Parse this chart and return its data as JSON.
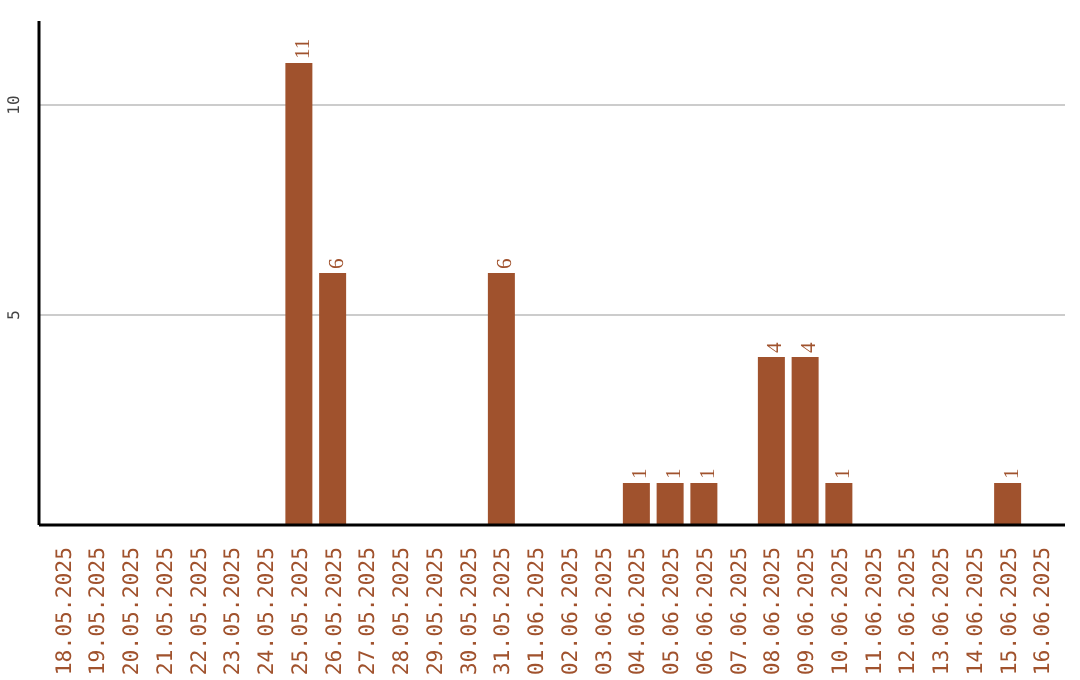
{
  "chart_data": {
    "type": "bar",
    "categories": [
      "18.05.2025",
      "19.05.2025",
      "20.05.2025",
      "21.05.2025",
      "22.05.2025",
      "23.05.2025",
      "24.05.2025",
      "25.05.2025",
      "26.05.2025",
      "27.05.2025",
      "28.05.2025",
      "29.05.2025",
      "30.05.2025",
      "31.05.2025",
      "01.06.2025",
      "02.06.2025",
      "03.06.2025",
      "04.06.2025",
      "05.06.2025",
      "06.06.2025",
      "07.06.2025",
      "08.06.2025",
      "09.06.2025",
      "10.06.2025",
      "11.06.2025",
      "12.06.2025",
      "13.06.2025",
      "14.06.2025",
      "15.06.2025",
      "16.06.2025"
    ],
    "values": [
      0,
      0,
      0,
      0,
      0,
      0,
      0,
      11,
      6,
      0,
      0,
      0,
      0,
      6,
      0,
      0,
      0,
      1,
      1,
      1,
      0,
      4,
      4,
      1,
      0,
      0,
      0,
      0,
      1,
      0
    ],
    "value_labels": [
      null,
      null,
      null,
      null,
      null,
      null,
      null,
      "11",
      "6",
      null,
      null,
      null,
      null,
      "6",
      null,
      null,
      null,
      "1",
      "1",
      "1",
      null,
      "4",
      "4",
      "1",
      null,
      null,
      null,
      null,
      "1",
      null
    ],
    "color": "#a0522d",
    "ylim": [
      0,
      12
    ],
    "yticks": [
      5,
      10
    ],
    "grid": "y"
  }
}
